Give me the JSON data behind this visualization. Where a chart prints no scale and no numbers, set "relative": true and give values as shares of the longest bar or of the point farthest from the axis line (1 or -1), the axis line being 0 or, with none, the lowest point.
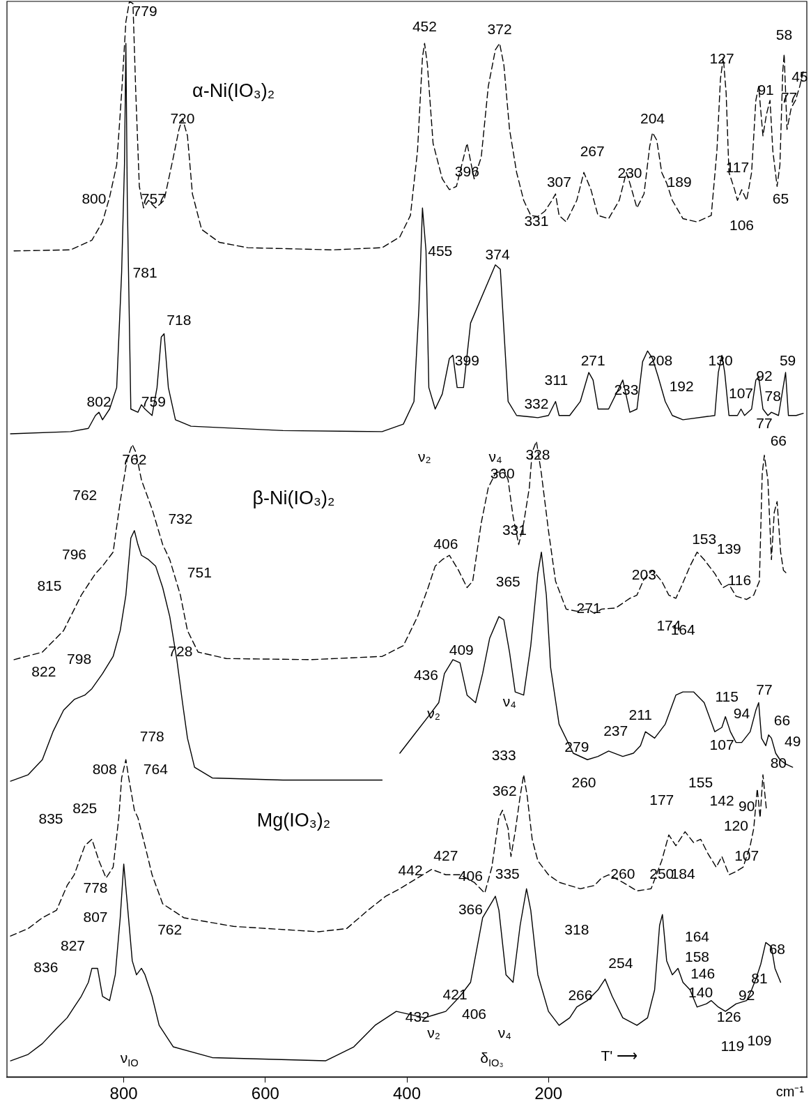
{
  "chart_data": {
    "type": "line",
    "relative": true,
    "xlabel": "cm⁻¹",
    "xlim": [
      965,
      -165
    ],
    "xticks": [
      800,
      600,
      400,
      200
    ],
    "grid": false,
    "legend": false,
    "marker": "none",
    "series": [
      {
        "color": "#000000",
        "line_style": "dashed",
        "x": [
          955,
          875,
          845,
          830,
          820,
          810,
          803,
          797,
          792,
          787,
          783,
          778,
          772,
          765,
          755,
          743,
          730,
          722,
          717,
          710,
          703,
          690,
          665,
          625,
          505,
          435,
          410,
          395,
          385,
          378,
          375,
          371,
          363,
          350,
          340,
          330,
          315,
          305,
          295,
          285,
          275,
          269,
          263,
          255,
          245,
          235,
          225,
          215,
          205,
          195,
          190,
          185,
          175,
          160,
          150,
          140,
          130,
          115,
          100,
          90,
          85,
          75,
          65,
          57,
          53,
          47,
          40,
          33,
          25,
          10,
          -10,
          -30,
          -38,
          -43,
          -47,
          -51,
          -55,
          -63,
          -67,
          -73,
          -80,
          -87,
          -93,
          -97,
          -103,
          -108,
          -113,
          -117,
          -123,
          -127,
          -131,
          -133,
          -137,
          -143,
          -149,
          -155,
          -160
        ],
        "values": [
          0.768,
          0.769,
          0.778,
          0.795,
          0.818,
          0.848,
          0.915,
          0.981,
          1.0,
          0.998,
          0.915,
          0.828,
          0.808,
          0.815,
          0.808,
          0.815,
          0.855,
          0.881,
          0.891,
          0.875,
          0.821,
          0.788,
          0.776,
          0.771,
          0.769,
          0.771,
          0.781,
          0.801,
          0.861,
          0.948,
          0.961,
          0.941,
          0.868,
          0.835,
          0.825,
          0.828,
          0.868,
          0.835,
          0.855,
          0.921,
          0.955,
          0.961,
          0.941,
          0.881,
          0.841,
          0.815,
          0.801,
          0.8,
          0.805,
          0.815,
          0.821,
          0.801,
          0.795,
          0.815,
          0.841,
          0.825,
          0.801,
          0.798,
          0.815,
          0.841,
          0.831,
          0.808,
          0.821,
          0.865,
          0.878,
          0.871,
          0.841,
          0.831,
          0.815,
          0.798,
          0.795,
          0.801,
          0.861,
          0.928,
          0.948,
          0.915,
          0.841,
          0.825,
          0.815,
          0.825,
          0.815,
          0.841,
          0.908,
          0.921,
          0.875,
          0.895,
          0.908,
          0.861,
          0.828,
          0.848,
          0.935,
          0.951,
          0.881,
          0.901,
          0.908,
          0.921,
          0.935
        ]
      },
      {
        "color": "#000000",
        "line_style": "solid",
        "x": [
          960,
          875,
          850,
          840,
          835,
          830,
          820,
          810,
          803,
          799,
          797,
          795,
          790,
          780,
          775,
          770,
          760,
          753,
          747,
          743,
          737,
          727,
          705,
          575,
          435,
          405,
          390,
          383,
          378,
          373,
          369,
          360,
          350,
          340,
          335,
          329,
          320,
          310,
          275,
          268,
          263,
          257,
          245,
          215,
          200,
          190,
          185,
          170,
          155,
          143,
          137,
          130,
          115,
          100,
          95,
          85,
          75,
          67,
          60,
          53,
          45,
          35,
          25,
          10,
          -35,
          -40,
          -45,
          -49,
          -55,
          -67,
          -72,
          -77,
          -87,
          -93,
          -97,
          -103,
          -110,
          -115,
          -125,
          -130,
          -135,
          -139,
          -150,
          -160
        ],
        "values": [
          0.598,
          0.6,
          0.603,
          0.615,
          0.618,
          0.611,
          0.621,
          0.641,
          0.748,
          0.848,
          0.961,
          0.815,
          0.621,
          0.618,
          0.625,
          0.621,
          0.615,
          0.641,
          0.688,
          0.691,
          0.641,
          0.611,
          0.605,
          0.601,
          0.6,
          0.607,
          0.628,
          0.715,
          0.808,
          0.768,
          0.641,
          0.621,
          0.635,
          0.668,
          0.671,
          0.641,
          0.641,
          0.701,
          0.755,
          0.751,
          0.695,
          0.628,
          0.615,
          0.613,
          0.615,
          0.628,
          0.615,
          0.615,
          0.628,
          0.655,
          0.648,
          0.621,
          0.621,
          0.641,
          0.648,
          0.618,
          0.621,
          0.665,
          0.675,
          0.668,
          0.651,
          0.628,
          0.615,
          0.611,
          0.615,
          0.655,
          0.671,
          0.655,
          0.615,
          0.615,
          0.621,
          0.615,
          0.621,
          0.648,
          0.651,
          0.621,
          0.615,
          0.618,
          0.615,
          0.635,
          0.655,
          0.615,
          0.615,
          0.617
        ]
      },
      {
        "color": "#000000",
        "line_style": "dashed",
        "x": [
          955,
          915,
          885,
          860,
          840,
          830,
          815,
          805,
          795,
          788,
          783,
          775,
          760,
          745,
          735,
          720,
          710,
          695,
          655,
          535,
          435,
          405,
          385,
          370,
          360,
          350,
          340,
          327,
          315,
          307,
          295,
          285,
          275,
          263,
          257,
          250,
          242,
          235,
          227,
          223,
          217,
          210,
          200,
          190,
          175,
          160,
          145,
          135,
          125,
          105,
          85,
          75,
          65,
          53,
          40,
          30,
          20,
          13,
          0,
          -10,
          -20,
          -35,
          -47,
          -55,
          -65,
          -80,
          -90,
          -98,
          -102,
          -105,
          -110,
          -115,
          -119,
          -123,
          -128,
          -132,
          -137
        ],
        "values": [
          0.388,
          0.395,
          0.415,
          0.448,
          0.468,
          0.475,
          0.488,
          0.535,
          0.575,
          0.588,
          0.581,
          0.555,
          0.528,
          0.495,
          0.481,
          0.448,
          0.415,
          0.395,
          0.389,
          0.388,
          0.391,
          0.401,
          0.428,
          0.455,
          0.475,
          0.481,
          0.485,
          0.471,
          0.455,
          0.461,
          0.515,
          0.548,
          0.561,
          0.565,
          0.555,
          0.521,
          0.495,
          0.515,
          0.548,
          0.581,
          0.591,
          0.561,
          0.508,
          0.461,
          0.435,
          0.433,
          0.435,
          0.431,
          0.435,
          0.436,
          0.445,
          0.448,
          0.463,
          0.471,
          0.461,
          0.448,
          0.445,
          0.455,
          0.475,
          0.488,
          0.481,
          0.468,
          0.455,
          0.458,
          0.447,
          0.444,
          0.448,
          0.461,
          0.561,
          0.578,
          0.555,
          0.481,
          0.525,
          0.535,
          0.488,
          0.471,
          0.468
        ]
      },
      {
        "color": "#000000",
        "line_style": "solid",
        "x": [
          960,
          935,
          915,
          900,
          885,
          870,
          855,
          845,
          830,
          815,
          805,
          797,
          790,
          785,
          780,
          775,
          765,
          755,
          745,
          735,
          725,
          717,
          710,
          700,
          675,
          575,
          435,
          423,
          410,
          390,
          370,
          355,
          347,
          335,
          325,
          315,
          303,
          293,
          283,
          270,
          263,
          255,
          247,
          235,
          225,
          215,
          210,
          203,
          197,
          185,
          165,
          145,
          130,
          115,
          95,
          80,
          70,
          63,
          50,
          35,
          20,
          10,
          -5,
          -20,
          -35,
          -45,
          -50,
          -57,
          -65,
          -73,
          -85,
          -93,
          -97,
          -101,
          -107,
          -111,
          -115,
          -121,
          -127,
          -135,
          -145
        ],
        "values": [
          0.275,
          0.281,
          0.295,
          0.321,
          0.341,
          0.351,
          0.355,
          0.361,
          0.375,
          0.391,
          0.415,
          0.448,
          0.501,
          0.508,
          0.495,
          0.485,
          0.481,
          0.475,
          0.455,
          0.428,
          0.388,
          0.348,
          0.315,
          0.288,
          0.278,
          0.276,
          0.276,
          null,
          0.301,
          0.318,
          0.335,
          0.348,
          0.375,
          0.388,
          0.385,
          0.355,
          0.348,
          0.375,
          0.408,
          0.428,
          0.425,
          0.395,
          0.358,
          0.355,
          0.401,
          0.468,
          0.488,
          0.448,
          0.381,
          0.328,
          0.301,
          0.295,
          0.298,
          0.303,
          0.298,
          0.301,
          0.308,
          0.321,
          0.315,
          0.328,
          0.355,
          0.358,
          0.358,
          0.348,
          0.321,
          0.325,
          0.335,
          0.321,
          0.311,
          0.311,
          0.321,
          0.341,
          0.348,
          0.315,
          0.308,
          0.318,
          0.315,
          0.301,
          0.295,
          0.291,
          0.288
        ]
      },
      {
        "color": "#000000",
        "line_style": "dashed",
        "x": [
          960,
          935,
          915,
          895,
          880,
          870,
          855,
          845,
          835,
          825,
          815,
          807,
          803,
          797,
          793,
          785,
          780,
          770,
          760,
          745,
          715,
          645,
          525,
          485,
          455,
          430,
          410,
          385,
          365,
          345,
          325,
          305,
          290,
          280,
          270,
          265,
          257,
          253,
          247,
          240,
          235,
          230,
          223,
          215,
          200,
          185,
          155,
          135,
          125,
          115,
          95,
          75,
          55,
          40,
          30,
          20,
          7,
          -5,
          -15,
          -25,
          -37,
          -45,
          -55,
          -65,
          -75,
          -85,
          -90,
          -95,
          -99,
          -103,
          -108
        ],
        "values": [
          0.131,
          0.138,
          0.148,
          0.155,
          0.178,
          0.188,
          0.215,
          0.221,
          0.201,
          0.185,
          0.195,
          0.241,
          0.278,
          0.295,
          0.278,
          0.248,
          0.241,
          0.215,
          0.188,
          0.161,
          0.148,
          0.14,
          0.135,
          0.138,
          0.155,
          0.168,
          0.175,
          0.185,
          0.193,
          0.188,
          0.188,
          0.181,
          0.171,
          0.195,
          0.241,
          0.248,
          0.231,
          0.205,
          0.228,
          0.261,
          0.281,
          0.261,
          0.221,
          0.201,
          0.188,
          0.181,
          0.175,
          0.178,
          0.185,
          0.188,
          0.181,
          0.173,
          0.175,
          0.201,
          0.225,
          0.215,
          0.228,
          0.218,
          0.221,
          0.208,
          0.195,
          0.205,
          0.188,
          0.191,
          0.195,
          0.215,
          0.231,
          0.268,
          0.241,
          0.281,
          0.248
        ]
      },
      {
        "color": "#000000",
        "line_style": "solid",
        "x": [
          960,
          935,
          915,
          895,
          880,
          870,
          860,
          850,
          845,
          837,
          830,
          820,
          812,
          805,
          800,
          795,
          788,
          782,
          775,
          770,
          760,
          750,
          730,
          675,
          515,
          475,
          445,
          415,
          375,
          360,
          345,
          325,
          310,
          293,
          275,
          270,
          260,
          250,
          240,
          231,
          225,
          215,
          200,
          185,
          170,
          160,
          145,
          130,
          120,
          110,
          95,
          75,
          60,
          50,
          43,
          39,
          33,
          25,
          17,
          10,
          0,
          -10,
          -23,
          -30,
          -40,
          -50,
          -65,
          -80,
          -87,
          -93,
          -100,
          -107,
          -115,
          -120,
          -128
        ],
        "values": [
          0.015,
          0.021,
          0.031,
          0.045,
          0.055,
          0.065,
          0.075,
          0.088,
          0.101,
          0.101,
          0.075,
          0.071,
          0.095,
          0.148,
          0.198,
          0.161,
          0.108,
          0.095,
          0.101,
          0.095,
          0.075,
          0.048,
          0.028,
          0.018,
          0.015,
          0.028,
          0.048,
          0.061,
          0.055,
          0.058,
          0.061,
          0.075,
          0.088,
          0.148,
          0.168,
          0.155,
          0.095,
          0.088,
          0.141,
          0.175,
          0.155,
          0.095,
          0.061,
          0.048,
          0.055,
          0.065,
          0.071,
          0.081,
          0.091,
          0.075,
          0.055,
          0.048,
          0.055,
          0.081,
          0.141,
          0.151,
          0.108,
          0.095,
          0.101,
          0.088,
          0.081,
          0.065,
          0.068,
          0.071,
          0.065,
          0.061,
          0.068,
          0.071,
          0.081,
          0.091,
          0.105,
          0.125,
          0.121,
          0.101,
          0.088
        ]
      }
    ],
    "annotations": [
      "α-Ni(IO₃)₂",
      "β-Ni(IO₃)₂",
      "Mg(IO₃)₂",
      "779",
      "800",
      "757",
      "720",
      "452",
      "372",
      "396",
      "331",
      "307",
      "267",
      "230",
      "204",
      "189",
      "127",
      "117",
      "91",
      "77",
      "58",
      "45",
      "106",
      "65",
      "781",
      "718",
      "802",
      "759",
      "455",
      "374",
      "399",
      "332",
      "311",
      "271",
      "233",
      "208",
      "192",
      "130",
      "107",
      "92",
      "78",
      "59",
      "ν₂",
      "ν₄",
      "762",
      "762",
      "796",
      "815",
      "732",
      "751",
      "406",
      "360",
      "328",
      "331",
      "153",
      "139",
      "116",
      "203",
      "174",
      "271",
      "77",
      "66",
      "365",
      "409",
      "436",
      "822",
      "798",
      "728",
      "ν₂",
      "ν₄",
      "164",
      "115",
      "94",
      "77",
      "66",
      "49",
      "107",
      "279",
      "260",
      "237",
      "211",
      "778",
      "808",
      "764",
      "825",
      "835",
      "333",
      "362",
      "155",
      "177",
      "142",
      "90",
      "80",
      "120",
      "107",
      "427",
      "442",
      "406",
      "260",
      "250",
      "778",
      "807",
      "762",
      "827",
      "836",
      "335",
      "366",
      "184",
      "318",
      "254",
      "266",
      "164",
      "158",
      "146",
      "140",
      "92",
      "81",
      "68",
      "126",
      "119",
      "109",
      "432",
      "421",
      "406",
      "ν₂",
      "ν₄",
      "δ$_{IO₃}$",
      "ν$_{IO}$",
      "T' ⟶"
    ]
  }
}
